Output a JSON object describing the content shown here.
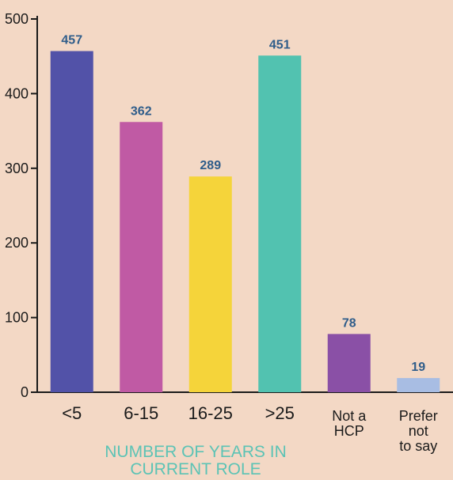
{
  "chart_data": {
    "type": "bar",
    "categories": [
      "<5",
      "6-15",
      "16-25",
      ">25",
      "Not a HCP",
      "Prefer not to say"
    ],
    "category_lines": [
      [
        "<5"
      ],
      [
        "6-15"
      ],
      [
        "16-25"
      ],
      [
        ">25"
      ],
      [
        "Not a",
        "HCP"
      ],
      [
        "Prefer",
        "not",
        "to say"
      ]
    ],
    "values": [
      457,
      362,
      289,
      451,
      78,
      19
    ],
    "value_labels": [
      "457",
      "362",
      "289",
      "451",
      "78",
      "19"
    ],
    "colors": [
      "#5252a8",
      "#c05aa4",
      "#f5d43a",
      "#52c2b0",
      "#8a50a6",
      "#a8bde3"
    ],
    "ylim": [
      0,
      500
    ],
    "yticks": [
      0,
      100,
      200,
      300,
      400,
      500
    ],
    "xlabel_lines": [
      "NUMBER OF YEARS IN",
      "CURRENT ROLE"
    ],
    "xlabel_color": "#5cc3b5",
    "value_label_color": "#2f5d8a",
    "grid": false,
    "legend": "none"
  }
}
